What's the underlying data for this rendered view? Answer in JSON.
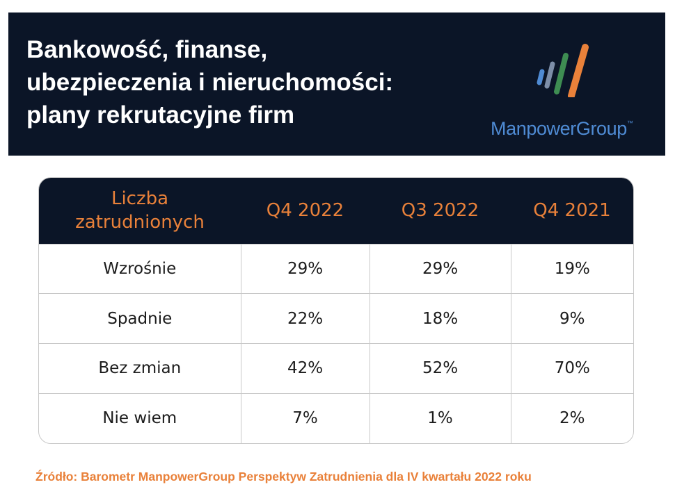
{
  "title_lines": [
    "Bankowość, finanse,",
    "ubezpieczenia i nieruchomości:",
    "plany rekrutacyjne firm"
  ],
  "brand": {
    "name": "ManpowerGroup",
    "trademark": "™",
    "colors": {
      "navy": "#0b1527",
      "orange": "#e9813a",
      "blue": "#4f8bd4",
      "gray_blue": "#7d8ea8",
      "green": "#3e8d52"
    }
  },
  "chart_data": {
    "type": "table",
    "row_header_label": "Liczba zatrudnionych",
    "columns": [
      "Q4 2022",
      "Q3 2022",
      "Q4 2021"
    ],
    "rows": [
      {
        "label": "Wzrośnie",
        "values": [
          "29%",
          "29%",
          "19%"
        ]
      },
      {
        "label": "Spadnie",
        "values": [
          "22%",
          "18%",
          "9%"
        ]
      },
      {
        "label": "Bez zmian",
        "values": [
          "42%",
          "52%",
          "70%"
        ]
      },
      {
        "label": "Nie wiem",
        "values": [
          "7%",
          "1%",
          "2%"
        ]
      }
    ]
  },
  "source_text": "Źródło: Barometr ManpowerGroup Perspektyw Zatrudnienia dla IV kwartału 2022 roku"
}
